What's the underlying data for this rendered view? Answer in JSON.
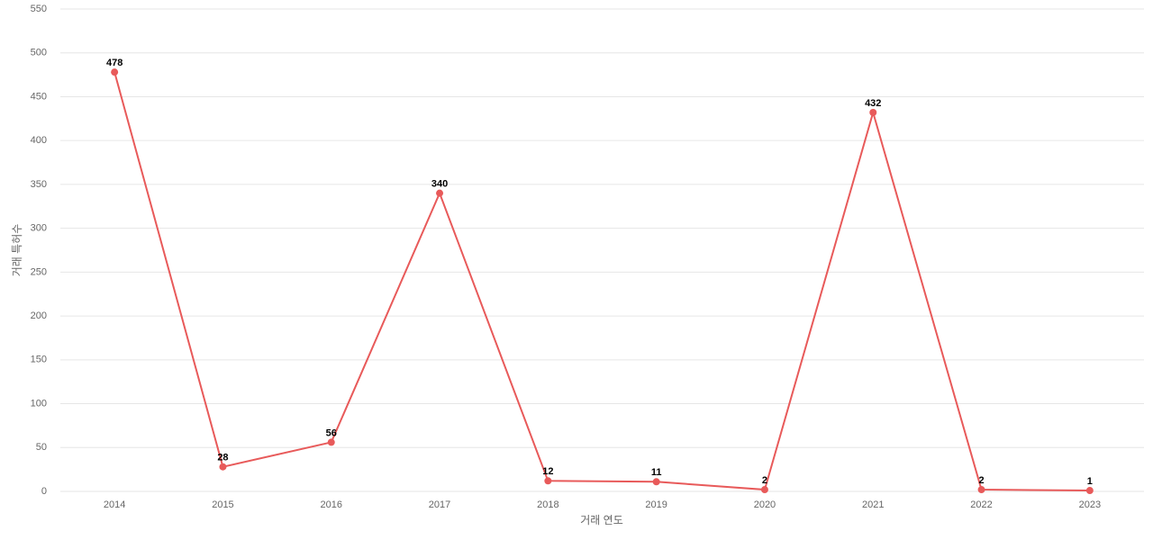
{
  "chart_data": {
    "type": "line",
    "x_label": "거래 연도",
    "y_label": "거래 특허수",
    "categories": [
      "2014",
      "2015",
      "2016",
      "2017",
      "2018",
      "2019",
      "2020",
      "2021",
      "2022",
      "2023"
    ],
    "values": [
      478,
      28,
      56,
      340,
      12,
      11,
      2,
      432,
      2,
      1
    ],
    "color": "#e85a5a",
    "ylim": [
      0,
      550
    ],
    "yticks": [
      0,
      50,
      100,
      150,
      200,
      250,
      300,
      350,
      400,
      450,
      500,
      550
    ],
    "grid": true
  }
}
